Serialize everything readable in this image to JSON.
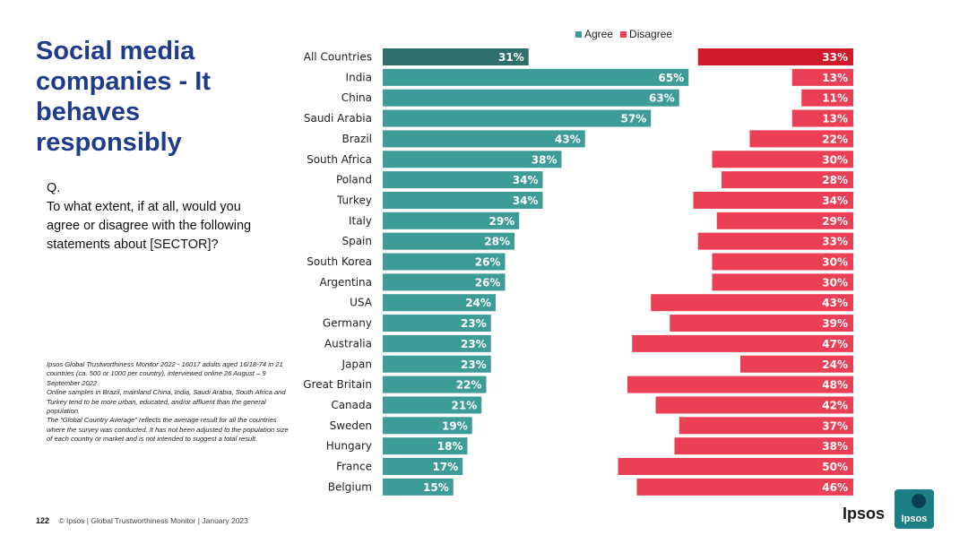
{
  "title": "Social media companies - It behaves responsibly",
  "question": {
    "label": "Q.",
    "text": "To what extent, if at all, would you agree or disagree with the following statements about [SECTOR]?"
  },
  "notes": [
    "Ipsos Global Trustworthiness Monitor 2022 - 16017 adults aged 16/18-74 in 21 countries (ca. 500 or 1000 per country), interviewed online 26 August – 9 September 2022",
    "Online samples in Brazil, mainland China, India, Saudi Arabia, South Africa and Turkey tend to be more urban, educated, and/or affluent than the general population.",
    "The “Global Country Average” reflects the average result for all the countries where the survey was conducted. It has not been adjusted to the population size of each country or market and is not intended to suggest a total result."
  ],
  "footer": {
    "page": "122",
    "text": "© Ipsos | Global Trustworthiness Monitor | January 2023"
  },
  "logo": {
    "text": "Ipsos",
    "mark_text": "Ipsos"
  },
  "colors": {
    "agree": "#3d9c98",
    "agree_highlight": "#2f6f6d",
    "disagree": "#ea3f55",
    "disagree_highlight": "#d11a2a",
    "title": "#1f3b8c"
  },
  "chart_data": {
    "type": "bar",
    "orientation": "horizontal-diverging",
    "legend": [
      "Agree",
      "Disagree"
    ],
    "categories": [
      "All Countries",
      "India",
      "China",
      "Saudi Arabia",
      "Brazil",
      "South Africa",
      "Poland",
      "Turkey",
      "Italy",
      "Spain",
      "South Korea",
      "Argentina",
      "USA",
      "Germany",
      "Australia",
      "Japan",
      "Great Britain",
      "Canada",
      "Sweden",
      "Hungary",
      "France",
      "Belgium"
    ],
    "series": [
      {
        "name": "Agree",
        "values": [
          31,
          65,
          63,
          57,
          43,
          38,
          34,
          34,
          29,
          28,
          26,
          26,
          24,
          23,
          23,
          23,
          22,
          21,
          19,
          18,
          17,
          15
        ]
      },
      {
        "name": "Disagree",
        "values": [
          33,
          13,
          11,
          13,
          22,
          30,
          28,
          34,
          29,
          33,
          30,
          30,
          43,
          39,
          47,
          24,
          48,
          42,
          37,
          38,
          50,
          46
        ]
      }
    ],
    "value_suffix": "%",
    "highlight_category": "All Countries"
  }
}
